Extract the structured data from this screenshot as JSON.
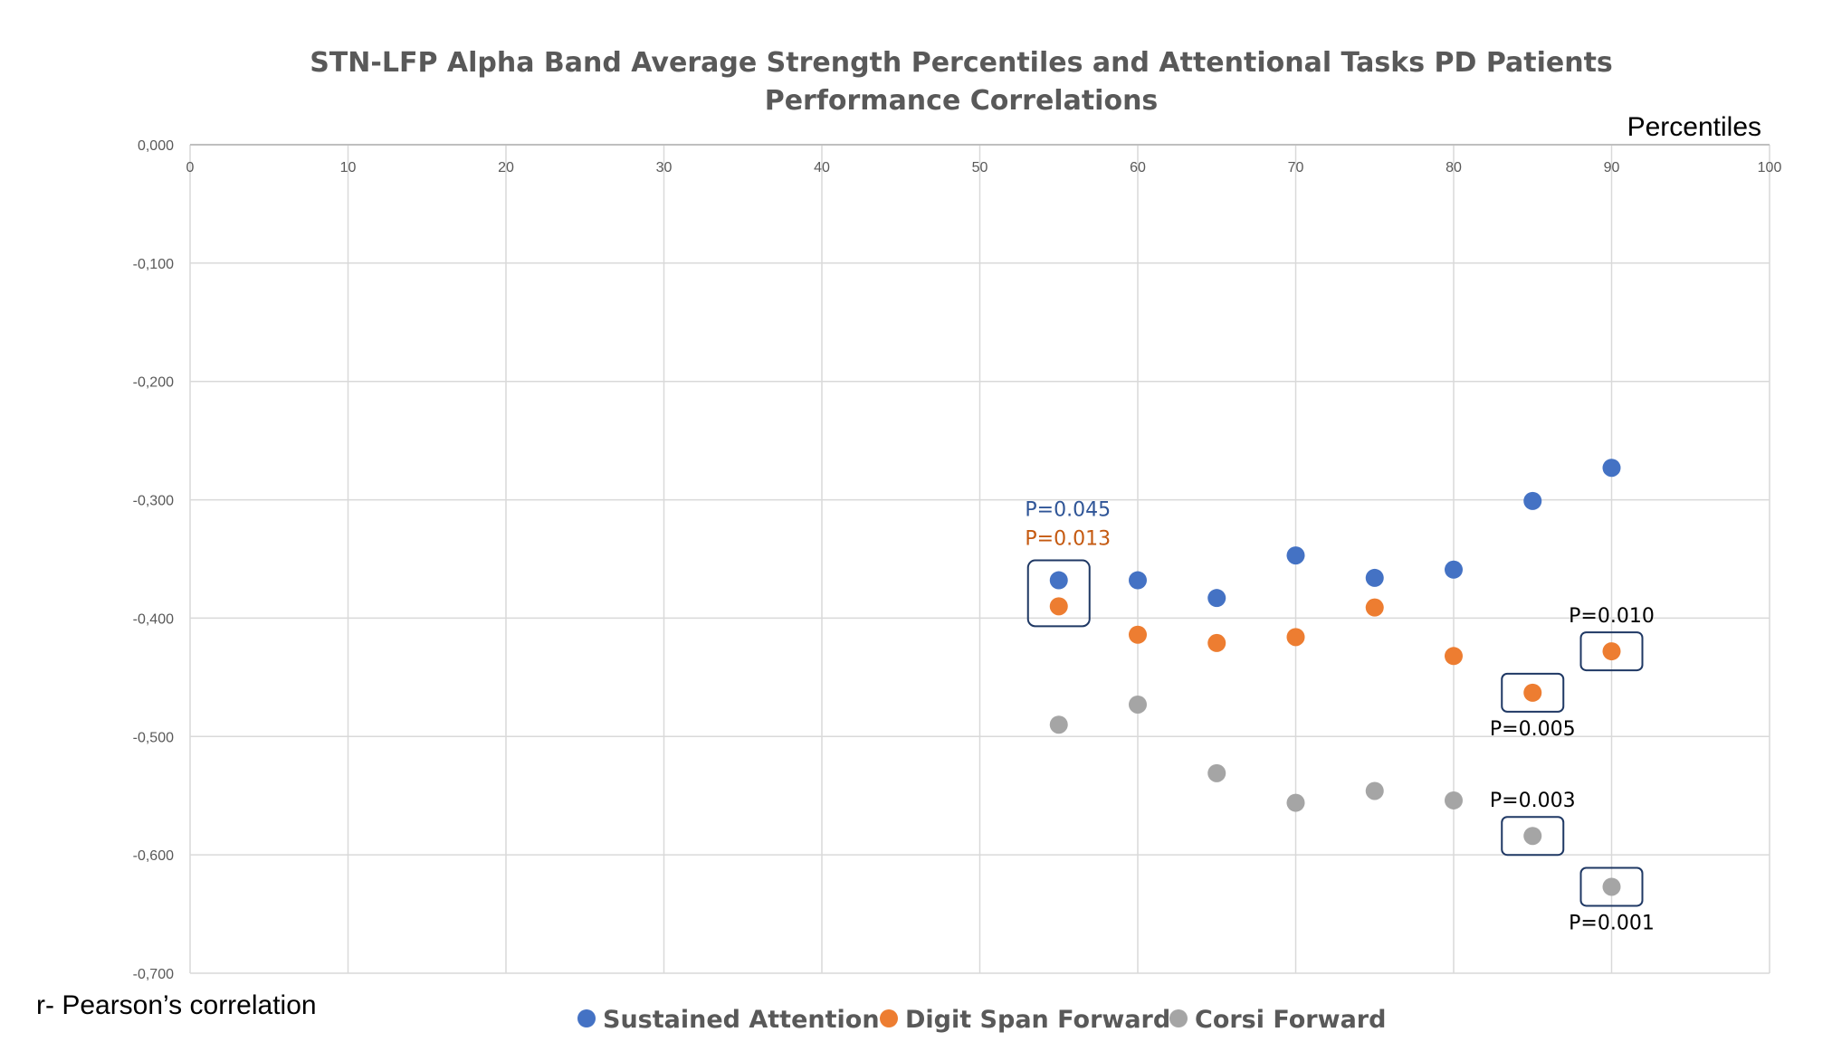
{
  "chart_data": {
    "type": "scatter",
    "title": "STN-LFP Alpha Band Average Strength Percentiles and Attentional Tasks PD Patients Performance Correlations",
    "title_lines": [
      "STN-LFP Alpha Band Average Strength Percentiles and Attentional Tasks PD Patients",
      "Performance Correlations"
    ],
    "xlabel": "Percentiles",
    "ylabel": "r- Pearson’s correlation",
    "xlim": [
      0,
      100
    ],
    "ylim": [
      -0.7,
      0.0
    ],
    "x_position": "top",
    "grid": true,
    "legend_position": "bottom",
    "x_ticks": [
      0,
      10,
      20,
      30,
      40,
      50,
      60,
      70,
      80,
      90,
      100
    ],
    "x_tick_labels": [
      "0",
      "10",
      "20",
      "30",
      "40",
      "50",
      "60",
      "70",
      "80",
      "90",
      "100"
    ],
    "y_ticks": [
      0,
      -0.1,
      -0.2,
      -0.3,
      -0.4,
      -0.5,
      -0.6,
      -0.7
    ],
    "y_tick_labels": [
      "0,000",
      "-0,100",
      "-0,200",
      "-0,300",
      "-0,400",
      "-0,500",
      "-0,600",
      "-0,700"
    ],
    "series": [
      {
        "name": "Sustained Attention",
        "color": "#4472C4",
        "points": [
          {
            "x": 55,
            "y": -0.368
          },
          {
            "x": 60,
            "y": -0.368
          },
          {
            "x": 65,
            "y": -0.383
          },
          {
            "x": 70,
            "y": -0.347
          },
          {
            "x": 75,
            "y": -0.366
          },
          {
            "x": 80,
            "y": -0.359
          },
          {
            "x": 85,
            "y": -0.301
          },
          {
            "x": 90,
            "y": -0.273
          }
        ]
      },
      {
        "name": "Digit Span Forward",
        "color": "#ED7D31",
        "points": [
          {
            "x": 55,
            "y": -0.39
          },
          {
            "x": 60,
            "y": -0.414
          },
          {
            "x": 65,
            "y": -0.421
          },
          {
            "x": 70,
            "y": -0.416
          },
          {
            "x": 75,
            "y": -0.391
          },
          {
            "x": 80,
            "y": -0.432
          },
          {
            "x": 85,
            "y": -0.463
          },
          {
            "x": 90,
            "y": -0.428
          }
        ]
      },
      {
        "name": "Corsi Forward",
        "color": "#A5A5A5",
        "points": [
          {
            "x": 55,
            "y": -0.49
          },
          {
            "x": 60,
            "y": -0.473
          },
          {
            "x": 65,
            "y": -0.531
          },
          {
            "x": 70,
            "y": -0.556
          },
          {
            "x": 75,
            "y": -0.546
          },
          {
            "x": 80,
            "y": -0.554
          },
          {
            "x": 85,
            "y": -0.584
          },
          {
            "x": 90,
            "y": -0.627
          }
        ]
      }
    ],
    "annotations": [
      {
        "text": "P=0.045",
        "x": 55,
        "y": -0.368,
        "color": "#2F5597",
        "placement": "above-upper"
      },
      {
        "text": "P=0.013",
        "x": 55,
        "y": -0.39,
        "color": "#C55A11",
        "placement": "above-lower"
      },
      {
        "text": "P=0.010",
        "x": 90,
        "y": -0.428,
        "color": "#000000",
        "placement": "above"
      },
      {
        "text": "P=0.005",
        "x": 85,
        "y": -0.463,
        "color": "#000000",
        "placement": "below"
      },
      {
        "text": "P=0.003",
        "x": 85,
        "y": -0.584,
        "color": "#000000",
        "placement": "above"
      },
      {
        "text": "P=0.001",
        "x": 90,
        "y": -0.627,
        "color": "#000000",
        "placement": "below"
      }
    ],
    "highlight_box_color": "#1F3864"
  }
}
